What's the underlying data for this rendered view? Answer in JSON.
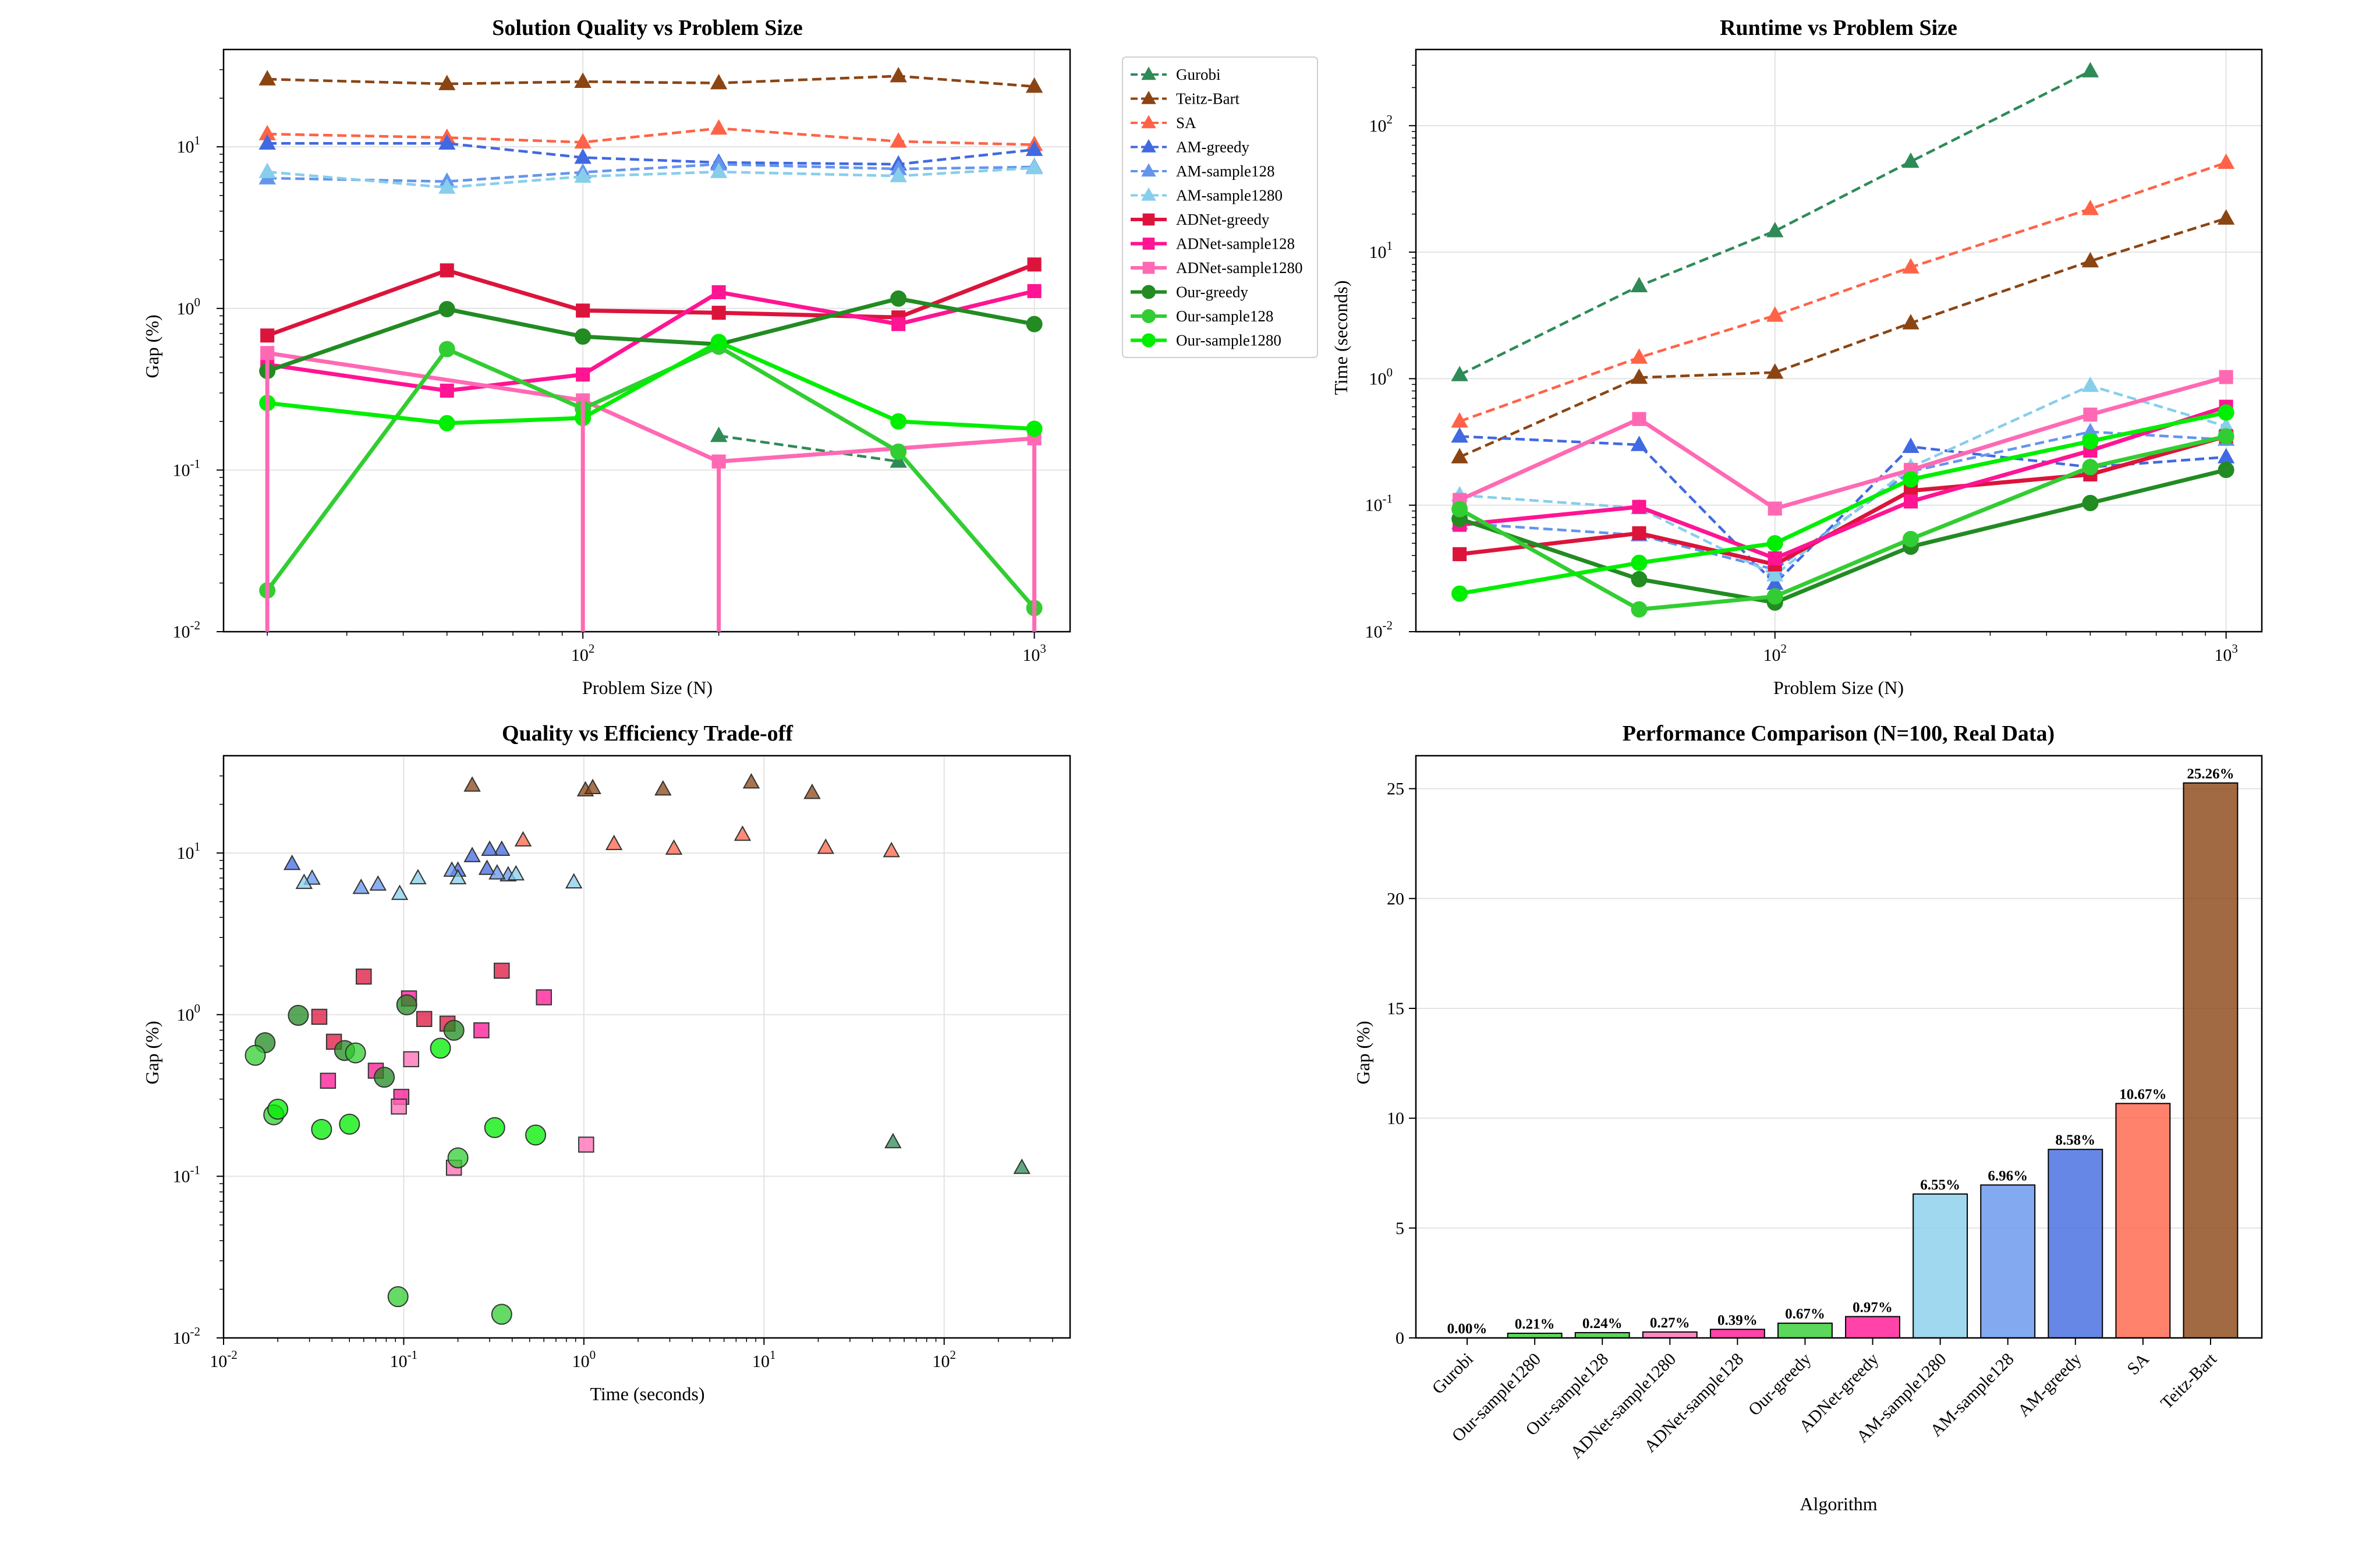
{
  "chart_data": [
    {
      "type": "line",
      "title": "Solution Quality vs Problem Size",
      "xlabel": "Problem Size (N)",
      "ylabel": "Gap (%)",
      "xscale": "log",
      "yscale": "log",
      "xlim": [
        16,
        1200
      ],
      "ylim": [
        0.01,
        40
      ],
      "x": [
        20,
        50,
        100,
        200,
        500,
        1000
      ],
      "series": [
        {
          "name": "Gurobi",
          "color": "#2e8b57",
          "marker": "triangle",
          "dash": true,
          "values": [
            null,
            null,
            null,
            0.163,
            0.113,
            null
          ]
        },
        {
          "name": "Teitz-Bart",
          "color": "#8b4513",
          "marker": "triangle",
          "dash": true,
          "values": [
            26.2,
            24.5,
            25.3,
            24.8,
            27.4,
            23.6
          ]
        },
        {
          "name": "SA",
          "color": "#ff6347",
          "marker": "triangle",
          "dash": true,
          "values": [
            12.0,
            11.4,
            10.67,
            13.0,
            10.8,
            10.3
          ]
        },
        {
          "name": "AM-greedy",
          "color": "#4169e1",
          "marker": "triangle",
          "dash": true,
          "values": [
            10.5,
            10.5,
            8.58,
            8.0,
            7.8,
            9.6
          ]
        },
        {
          "name": "AM-sample128",
          "color": "#6495ed",
          "marker": "triangle",
          "dash": true,
          "values": [
            6.4,
            6.1,
            6.96,
            7.8,
            7.3,
            7.5
          ]
        },
        {
          "name": "AM-sample1280",
          "color": "#87ceeb",
          "marker": "triangle",
          "dash": true,
          "values": [
            7.0,
            5.6,
            6.55,
            7.0,
            6.6,
            7.4
          ]
        },
        {
          "name": "ADNet-greedy",
          "color": "#dc143c",
          "marker": "square",
          "dash": false,
          "values": [
            0.68,
            1.72,
            0.97,
            0.94,
            0.88,
            1.87
          ]
        },
        {
          "name": "ADNet-sample128",
          "color": "#ff1493",
          "marker": "square",
          "dash": false,
          "values": [
            0.45,
            0.31,
            0.39,
            1.26,
            0.8,
            1.28
          ]
        },
        {
          "name": "ADNet-sample1280",
          "color": "#ff69b4",
          "marker": "square",
          "dash": false,
          "values": [
            0.53,
            null,
            0.27,
            0.113,
            null,
            0.157
          ]
        },
        {
          "name": "Our-greedy",
          "color": "#228b22",
          "marker": "circle",
          "dash": false,
          "values": [
            0.41,
            0.99,
            0.67,
            0.6,
            1.15,
            0.8
          ]
        },
        {
          "name": "Our-sample128",
          "color": "#32cd32",
          "marker": "circle",
          "dash": false,
          "values": [
            0.018,
            0.56,
            0.24,
            0.58,
            0.13,
            0.014
          ]
        },
        {
          "name": "Our-sample1280",
          "color": "#00ee00",
          "marker": "circle",
          "dash": false,
          "values": [
            0.26,
            0.195,
            0.21,
            0.62,
            0.2,
            0.18
          ]
        }
      ]
    },
    {
      "type": "line",
      "title": "Runtime vs Problem Size",
      "xlabel": "Problem Size (N)",
      "ylabel": "Time (seconds)",
      "xscale": "log",
      "yscale": "log",
      "xlim": [
        16,
        1200
      ],
      "ylim": [
        0.01,
        400
      ],
      "x": [
        20,
        50,
        100,
        200,
        500,
        1000
      ],
      "series": [
        {
          "name": "Gurobi",
          "color": "#2e8b57",
          "marker": "triangle",
          "dash": true,
          "values": [
            1.07,
            5.4,
            14.7,
            52,
            270,
            null
          ]
        },
        {
          "name": "Teitz-Bart",
          "color": "#8b4513",
          "marker": "triangle",
          "dash": true,
          "values": [
            0.24,
            1.02,
            1.12,
            2.75,
            8.5,
            18.5
          ]
        },
        {
          "name": "SA",
          "color": "#ff6347",
          "marker": "triangle",
          "dash": true,
          "values": [
            0.46,
            1.47,
            3.16,
            7.6,
            22,
            51
          ]
        },
        {
          "name": "AM-greedy",
          "color": "#4169e1",
          "marker": "triangle",
          "dash": true,
          "values": [
            0.35,
            0.3,
            0.024,
            0.29,
            0.2,
            0.24
          ]
        },
        {
          "name": "AM-sample128",
          "color": "#6495ed",
          "marker": "triangle",
          "dash": true,
          "values": [
            0.072,
            0.058,
            0.031,
            0.185,
            0.38,
            0.33
          ]
        },
        {
          "name": "AM-sample1280",
          "color": "#87ceeb",
          "marker": "triangle",
          "dash": true,
          "values": [
            0.12,
            0.095,
            0.028,
            0.2,
            0.88,
            0.42
          ]
        },
        {
          "name": "ADNet-greedy",
          "color": "#dc143c",
          "marker": "square",
          "dash": false,
          "values": [
            0.041,
            0.06,
            0.034,
            0.13,
            0.175,
            0.35
          ]
        },
        {
          "name": "ADNet-sample128",
          "color": "#ff1493",
          "marker": "square",
          "dash": false,
          "values": [
            0.07,
            0.097,
            0.038,
            0.107,
            0.27,
            0.6
          ]
        },
        {
          "name": "ADNet-sample1280",
          "color": "#ff69b4",
          "marker": "square",
          "dash": false,
          "values": [
            0.11,
            0.48,
            0.094,
            0.19,
            0.52,
            1.03
          ]
        },
        {
          "name": "Our-greedy",
          "color": "#228b22",
          "marker": "circle",
          "dash": false,
          "values": [
            0.078,
            0.026,
            0.017,
            0.047,
            0.104,
            0.19
          ]
        },
        {
          "name": "Our-sample128",
          "color": "#32cd32",
          "marker": "circle",
          "dash": false,
          "values": [
            0.093,
            0.015,
            0.019,
            0.054,
            0.2,
            0.35
          ]
        },
        {
          "name": "Our-sample1280",
          "color": "#00ee00",
          "marker": "circle",
          "dash": false,
          "values": [
            0.02,
            0.035,
            0.05,
            0.16,
            0.32,
            0.54
          ]
        }
      ]
    },
    {
      "type": "scatter",
      "title": "Quality vs Efficiency Trade-off",
      "xlabel": "Time (seconds)",
      "ylabel": "Gap (%)",
      "xscale": "log",
      "yscale": "log",
      "xlim": [
        0.01,
        500
      ],
      "ylim": [
        0.01,
        40
      ],
      "series_ref": "Runtime and gap values of the first two charts, paired by algorithm and problem size"
    },
    {
      "type": "bar",
      "title": "Performance Comparison (N=100, Real Data)",
      "xlabel": "Algorithm",
      "ylabel": "Gap (%)",
      "ylim": [
        0,
        26.5
      ],
      "yticks": [
        0,
        5,
        10,
        15,
        20,
        25
      ],
      "categories": [
        "Gurobi",
        "Our-sample1280",
        "Our-sample128",
        "ADNet-sample1280",
        "ADNet-sample128",
        "Our-greedy",
        "ADNet-greedy",
        "AM-sample1280",
        "AM-sample128",
        "AM-greedy",
        "SA",
        "Teitz-Bart"
      ],
      "values": [
        0.0,
        0.21,
        0.24,
        0.27,
        0.39,
        0.67,
        0.97,
        6.55,
        6.96,
        8.58,
        10.67,
        25.26
      ],
      "labels": [
        "0.00%",
        "0.21%",
        "0.24%",
        "0.27%",
        "0.39%",
        "0.67%",
        "0.97%",
        "6.55%",
        "6.96%",
        "8.58%",
        "10.67%",
        "25.26%"
      ],
      "colors": [
        "#2e8b57",
        "#32cd32",
        "#32cd32",
        "#ff69b4",
        "#ff1493",
        "#32cd32",
        "#ff1493",
        "#87ceeb",
        "#6495ed",
        "#4169e1",
        "#ff6347",
        "#8b4513"
      ]
    }
  ]
}
